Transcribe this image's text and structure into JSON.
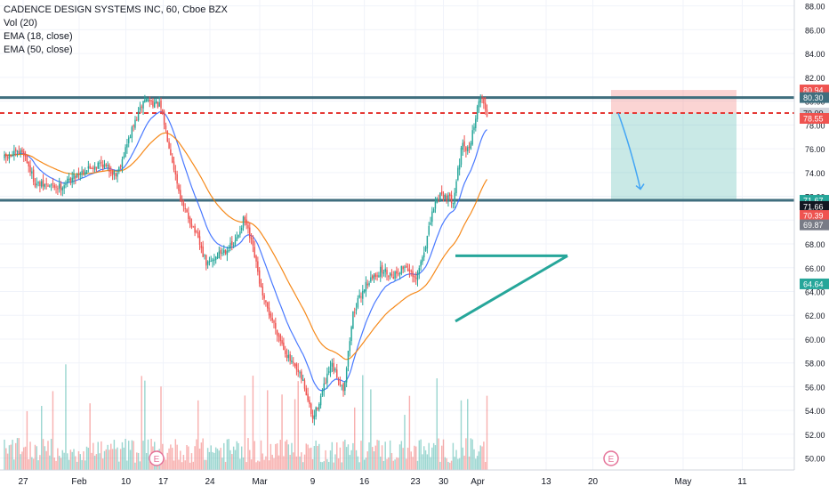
{
  "chart_data": {
    "type": "candlestick",
    "symbol": "CADENCE DESIGN SYSTEMS INC, 60, Cboe BZX",
    "indicators": [
      "Vol (20)",
      "EMA (18, close)",
      "EMA (50, close)"
    ],
    "y_axis": {
      "min": 49.0,
      "max": 88.5,
      "ticks": [
        "50.00",
        "52.00",
        "54.00",
        "56.00",
        "58.00",
        "60.00",
        "62.00",
        "64.00",
        "66.00",
        "68.00",
        "70.00",
        "72.00",
        "74.00",
        "76.00",
        "78.00",
        "80.00",
        "82.00",
        "84.00",
        "86.00",
        "88.00"
      ]
    },
    "x_axis": {
      "ticks": [
        {
          "label": "27",
          "t": 0.03
        },
        {
          "label": "Feb",
          "t": 0.12
        },
        {
          "label": "10",
          "t": 0.195
        },
        {
          "label": "17",
          "t": 0.255
        },
        {
          "label": "24",
          "t": 0.33
        },
        {
          "label": "Mar",
          "t": 0.41
        },
        {
          "label": "9",
          "t": 0.495
        },
        {
          "label": "16",
          "t": 0.578
        },
        {
          "label": "23",
          "t": 0.66
        },
        {
          "label": "30",
          "t": 0.705
        },
        {
          "label": "Apr",
          "t": 0.76
        },
        {
          "label": "13",
          "t": 0.87
        },
        {
          "label": "20",
          "t": 0.945
        },
        {
          "label": "May",
          "t": 1.09
        },
        {
          "label": "11",
          "t": 1.185
        }
      ]
    },
    "price_labels": [
      {
        "value": "80.94",
        "price": 80.94,
        "color": "#ef5350"
      },
      {
        "value": "80.30",
        "price": 80.3,
        "color": "#3f6e7e"
      },
      {
        "value": "79.00",
        "price": 79.0,
        "color": "#d1d4dc",
        "text_color": "#131722"
      },
      {
        "value": "78.55",
        "price": 78.55,
        "color": "#ef5350"
      },
      {
        "value": "71.67",
        "price": 71.67,
        "color": "#26a69a"
      },
      {
        "value": "71.66",
        "price": 71.15,
        "color": "#131722"
      },
      {
        "value": "70.39",
        "price": 70.39,
        "color": "#ef5350"
      },
      {
        "value": "69.87",
        "price": 69.6,
        "color": "#787b86"
      },
      {
        "value": "64.64",
        "price": 64.64,
        "color": "#26a69a"
      }
    ],
    "horizontal_levels": [
      80.3,
      71.67
    ],
    "dashed_level": 79.0,
    "triangle": {
      "resistance": 67.0,
      "support_start": 61.5,
      "support_end": 67.0
    },
    "short_position": {
      "entry": 79.0,
      "stop": 80.94,
      "target": 71.67
    },
    "arrow": {
      "from": 79.0,
      "to": 72.6
    },
    "earnings_markers": [
      "E",
      "E"
    ],
    "series_waypoints": [
      [
        0.0,
        75.2
      ],
      [
        0.03,
        75.8
      ],
      [
        0.05,
        73.0
      ],
      [
        0.09,
        72.8
      ],
      [
        0.12,
        74.0
      ],
      [
        0.155,
        74.8
      ],
      [
        0.18,
        73.8
      ],
      [
        0.205,
        77.6
      ],
      [
        0.225,
        80.2
      ],
      [
        0.25,
        79.6
      ],
      [
        0.265,
        76.2
      ],
      [
        0.285,
        71.3
      ],
      [
        0.305,
        69.2
      ],
      [
        0.325,
        66.2
      ],
      [
        0.345,
        67.2
      ],
      [
        0.37,
        68.0
      ],
      [
        0.385,
        70.2
      ],
      [
        0.4,
        67.4
      ],
      [
        0.415,
        63.4
      ],
      [
        0.435,
        61.0
      ],
      [
        0.455,
        58.5
      ],
      [
        0.48,
        56.4
      ],
      [
        0.495,
        53.2
      ],
      [
        0.505,
        54.7
      ],
      [
        0.525,
        57.8
      ],
      [
        0.545,
        55.8
      ],
      [
        0.56,
        62.2
      ],
      [
        0.58,
        64.6
      ],
      [
        0.605,
        65.8
      ],
      [
        0.625,
        65.4
      ],
      [
        0.645,
        66.2
      ],
      [
        0.66,
        64.8
      ],
      [
        0.675,
        67.6
      ],
      [
        0.69,
        71.2
      ],
      [
        0.7,
        72.3
      ],
      [
        0.72,
        71.6
      ],
      [
        0.735,
        76.2
      ],
      [
        0.745,
        75.8
      ],
      [
        0.765,
        80.6
      ],
      [
        0.775,
        78.8
      ]
    ]
  }
}
